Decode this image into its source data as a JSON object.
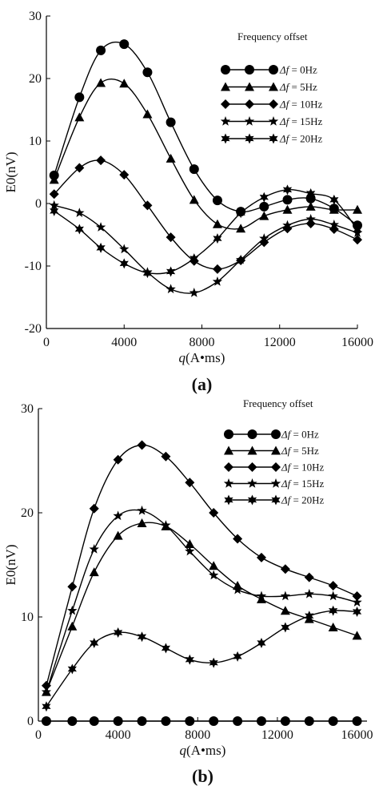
{
  "chart_data": [
    {
      "panel": "(a)",
      "type": "line",
      "xlabel_var": "q",
      "xlabel_unit": "(A•ms)",
      "ylabel": "E0(nV)",
      "xlim": [
        0,
        16000
      ],
      "ylim": [
        -20,
        30
      ],
      "xticks": [
        "0",
        "4000",
        "8000",
        "12000",
        "16000"
      ],
      "yticks": [
        "-20",
        "-10",
        "0",
        "10",
        "20",
        "30"
      ],
      "xticks_values": [
        0,
        4000,
        8000,
        12000,
        16000
      ],
      "yticks_values": [
        -20,
        -10,
        0,
        10,
        20,
        30
      ],
      "legend_title": "Frequency offset",
      "legend_position": "top-right",
      "series": [
        {
          "label_prefix": "Δf",
          "label_value": " = 0Hz",
          "marker": "circle",
          "x": [
            400,
            1700,
            2800,
            4000,
            5200,
            6400,
            7600,
            8800,
            10000,
            11200,
            12400,
            13600,
            14800,
            16000
          ],
          "y": [
            4.5,
            17,
            24.5,
            25.5,
            21,
            13,
            5.5,
            0.5,
            -1.3,
            -0.5,
            0.6,
            0.8,
            -0.8,
            -3.5
          ]
        },
        {
          "label_prefix": "Δf",
          "label_value": " = 5Hz",
          "marker": "triangle",
          "x": [
            400,
            1700,
            2800,
            4000,
            5200,
            6400,
            7600,
            8800,
            10000,
            11200,
            12400,
            13600,
            14800,
            16000
          ],
          "y": [
            3.8,
            13.8,
            19.3,
            19.2,
            14.3,
            7.2,
            0.6,
            -3.3,
            -4,
            -2,
            -1,
            -0.5,
            -1,
            -1
          ]
        },
        {
          "label_prefix": "Δf",
          "label_value": " = 10Hz",
          "marker": "diamond",
          "x": [
            400,
            1700,
            2800,
            4000,
            5200,
            6400,
            7600,
            8800,
            10000,
            11200,
            12400,
            13600,
            14800,
            16000
          ],
          "y": [
            1.5,
            5.7,
            6.9,
            4.6,
            -0.3,
            -5.4,
            -9.2,
            -10.5,
            -9.1,
            -6.2,
            -4,
            -3.2,
            -4.1,
            -5.8
          ]
        },
        {
          "label_prefix": "Δf",
          "label_value": " = 15Hz",
          "marker": "star5",
          "x": [
            400,
            1700,
            2800,
            4000,
            5200,
            6400,
            7600,
            8800,
            10000,
            11200,
            12400,
            13600,
            14800,
            16000
          ],
          "y": [
            -0.3,
            -1.5,
            -3.8,
            -7.3,
            -11,
            -13.7,
            -14.3,
            -12.5,
            -9,
            -5.6,
            -3.5,
            -2.5,
            -3.4,
            -4.7
          ]
        },
        {
          "label_prefix": "Δf",
          "label_value": " = 20Hz",
          "marker": "star6",
          "x": [
            400,
            1700,
            2800,
            4000,
            5200,
            6400,
            7600,
            8800,
            10000,
            11200,
            12400,
            13600,
            14800,
            16000
          ],
          "y": [
            -1.2,
            -4.1,
            -7.1,
            -9.6,
            -11.1,
            -10.9,
            -8.8,
            -5.6,
            -1.5,
            1,
            2.2,
            1.6,
            0.6,
            -4.2
          ]
        }
      ]
    },
    {
      "panel": "(b)",
      "type": "line",
      "xlabel_var": "q",
      "xlabel_unit": "(A•ms)",
      "ylabel": "E0(nV)",
      "xlim": [
        0,
        16500
      ],
      "ylim": [
        0,
        30
      ],
      "xticks": [
        "0",
        "4000",
        "8000",
        "12000",
        "16000"
      ],
      "yticks": [
        "0",
        "10",
        "20",
        "30"
      ],
      "xticks_values": [
        0,
        4000,
        8000,
        12000,
        16000
      ],
      "yticks_values": [
        0,
        10,
        20,
        30
      ],
      "legend_title": "Frequency offset",
      "legend_position": "top-right",
      "series": [
        {
          "label_prefix": "Δf",
          "label_value": " = 0Hz",
          "marker": "circle",
          "x": [
            400,
            1700,
            2800,
            4000,
            5200,
            6400,
            7600,
            8800,
            10000,
            11200,
            12400,
            13600,
            14800,
            16000
          ],
          "y": [
            0,
            0,
            0,
            0,
            0,
            0,
            0,
            0,
            0,
            0,
            0,
            0,
            0,
            0
          ]
        },
        {
          "label_prefix": "Δf",
          "label_value": " = 5Hz",
          "marker": "triangle",
          "x": [
            400,
            1700,
            2800,
            4000,
            5200,
            6400,
            7600,
            8800,
            10000,
            11200,
            12400,
            13600,
            14800,
            16000
          ],
          "y": [
            2.8,
            9.1,
            14.3,
            17.8,
            19,
            18.7,
            17,
            14.9,
            13,
            11.7,
            10.6,
            9.8,
            9,
            8.2
          ]
        },
        {
          "label_prefix": "Δf",
          "label_value": " = 10Hz",
          "marker": "diamond",
          "x": [
            400,
            1700,
            2800,
            4000,
            5200,
            6400,
            7600,
            8800,
            10000,
            11200,
            12400,
            13600,
            14800,
            16000
          ],
          "y": [
            3.4,
            12.9,
            20.4,
            25.1,
            26.5,
            25.4,
            22.9,
            20,
            17.5,
            15.7,
            14.6,
            13.8,
            13,
            12
          ]
        },
        {
          "label_prefix": "Δf",
          "label_value": " = 15Hz",
          "marker": "star5",
          "x": [
            400,
            1700,
            2800,
            4000,
            5200,
            6400,
            7600,
            8800,
            10000,
            11200,
            12400,
            13600,
            14800,
            16000
          ],
          "y": [
            2.8,
            10.6,
            16.5,
            19.7,
            20.2,
            18.8,
            16.3,
            14,
            12.6,
            12,
            12,
            12.2,
            12,
            11.4
          ]
        },
        {
          "label_prefix": "Δf",
          "label_value": " = 20Hz",
          "marker": "star6",
          "x": [
            400,
            1700,
            2800,
            4000,
            5200,
            6400,
            7600,
            8800,
            10000,
            11200,
            12400,
            13600,
            14800,
            16000
          ],
          "y": [
            1.4,
            5,
            7.5,
            8.5,
            8.1,
            7,
            5.9,
            5.6,
            6.2,
            7.5,
            9,
            10.1,
            10.6,
            10.5
          ]
        }
      ]
    }
  ]
}
